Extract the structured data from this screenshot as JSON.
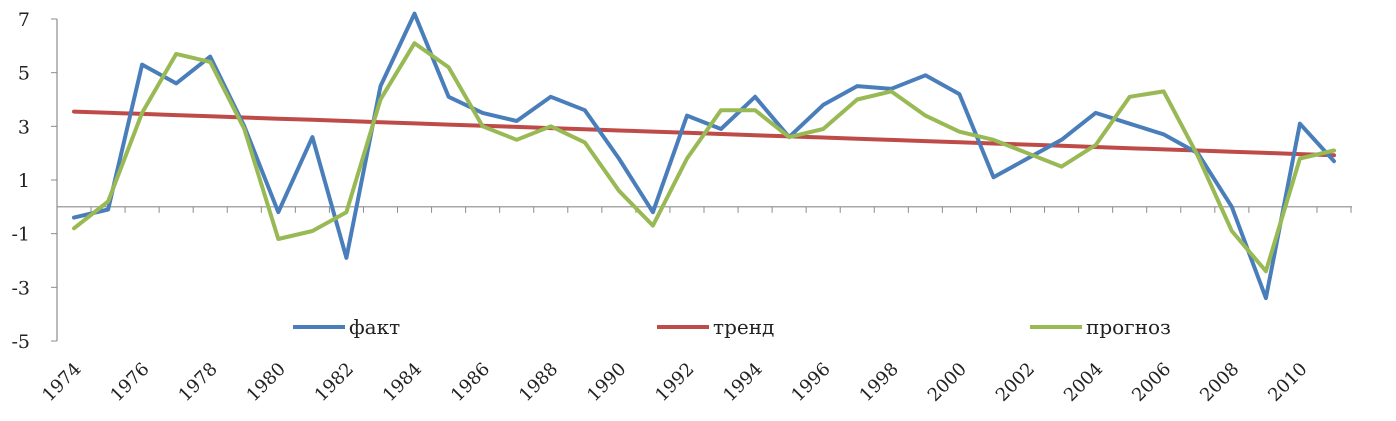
{
  "chart_data": {
    "type": "line",
    "x": [
      1974,
      1975,
      1976,
      1977,
      1978,
      1979,
      1980,
      1981,
      1982,
      1983,
      1984,
      1985,
      1986,
      1987,
      1988,
      1989,
      1990,
      1991,
      1992,
      1993,
      1994,
      1995,
      1996,
      1997,
      1998,
      1999,
      2000,
      2001,
      2002,
      2003,
      2004,
      2005,
      2006,
      2007,
      2008,
      2009,
      2010,
      2011
    ],
    "x_tick_labels": [
      "1974",
      "1976",
      "1978",
      "1980",
      "1982",
      "1984",
      "1986",
      "1988",
      "1990",
      "1992",
      "1994",
      "1996",
      "1998",
      "2000",
      "2002",
      "2004",
      "2006",
      "2008",
      "2010"
    ],
    "y_tick_labels": [
      "7",
      "5",
      "3",
      "1",
      "-1",
      "-3",
      "-5"
    ],
    "y_ticks": [
      7,
      5,
      3,
      1,
      -1,
      -3,
      -5
    ],
    "ylim": [
      -5,
      7
    ],
    "grid": false,
    "legend_position": "inside-bottom",
    "series": [
      {
        "name": "факт",
        "color": "#4a7ebb",
        "values": [
          -0.4,
          -0.1,
          5.3,
          4.6,
          5.6,
          3.0,
          -0.2,
          2.6,
          -1.9,
          4.5,
          7.2,
          4.1,
          3.5,
          3.2,
          4.1,
          3.6,
          1.8,
          -0.2,
          3.4,
          2.9,
          4.1,
          2.6,
          3.8,
          4.5,
          4.4,
          4.9,
          4.2,
          1.1,
          1.8,
          2.5,
          3.5,
          3.1,
          2.7,
          2.0,
          0.0,
          -3.4,
          3.1,
          1.7
        ]
      },
      {
        "name": "тренд",
        "color": "#be4b48",
        "values": [
          3.55,
          3.506,
          3.462,
          3.418,
          3.374,
          3.33,
          3.286,
          3.242,
          3.198,
          3.154,
          3.11,
          3.066,
          3.022,
          2.978,
          2.934,
          2.89,
          2.846,
          2.802,
          2.758,
          2.714,
          2.67,
          2.626,
          2.582,
          2.538,
          2.494,
          2.45,
          2.406,
          2.362,
          2.318,
          2.274,
          2.23,
          2.186,
          2.142,
          2.098,
          2.054,
          2.01,
          1.966,
          1.922
        ]
      },
      {
        "name": "прогноз",
        "color": "#98b954",
        "values": [
          -0.8,
          0.2,
          3.5,
          5.7,
          5.4,
          2.9,
          -1.2,
          -0.9,
          -0.2,
          4.0,
          6.1,
          5.2,
          3.0,
          2.5,
          3.0,
          2.4,
          0.6,
          -0.7,
          1.8,
          3.6,
          3.6,
          2.6,
          2.9,
          4.0,
          4.3,
          3.4,
          2.8,
          2.5,
          2.0,
          1.5,
          2.3,
          4.1,
          4.3,
          1.9,
          -0.9,
          -2.4,
          1.8,
          2.1
        ]
      }
    ]
  }
}
